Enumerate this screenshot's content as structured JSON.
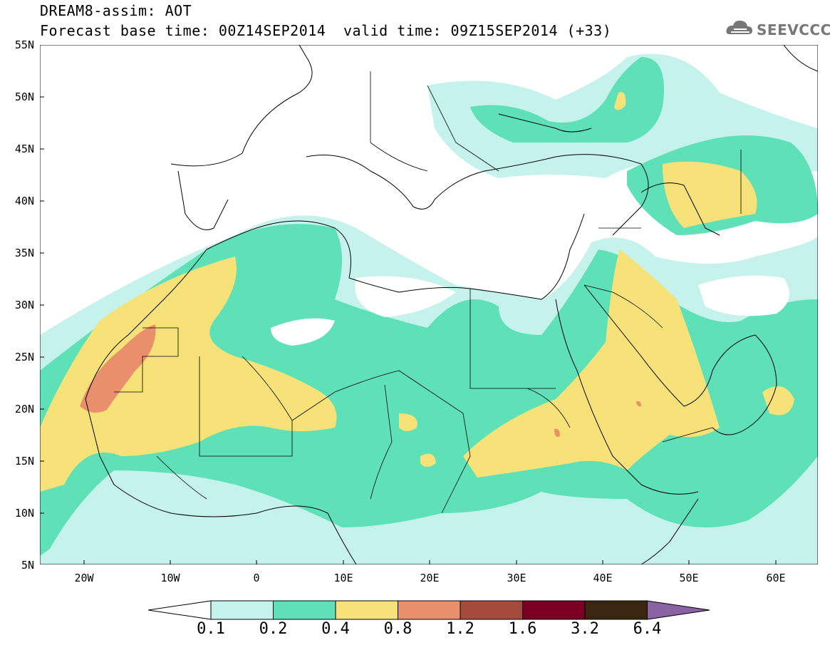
{
  "header": {
    "title": "DREAM8-assim: AOT",
    "base_time": "Forecast base time: 00Z14SEP2014",
    "valid_time": "valid time: 09Z15SEP2014 (+33)"
  },
  "logo": {
    "text": "SEEVCCC",
    "icon": "cloud-icon"
  },
  "axes": {
    "lat_ticks": [
      "55N",
      "50N",
      "45N",
      "40N",
      "35N",
      "30N",
      "25N",
      "20N",
      "15N",
      "10N",
      "5N"
    ],
    "lon_ticks": [
      "20W",
      "10W",
      "0",
      "10E",
      "20E",
      "30E",
      "40E",
      "50E",
      "60E"
    ]
  },
  "colorbar": {
    "labels": [
      "0.1",
      "0.2",
      "0.4",
      "0.8",
      "1.2",
      "1.6",
      "3.2",
      "6.4"
    ],
    "colors": [
      "#ffffff",
      "#c6f2ec",
      "#5ee1b7",
      "#f7e27a",
      "#e98f6b",
      "#a44b3e",
      "#7a0024",
      "#3b2611",
      "#8a63a5"
    ]
  },
  "palette": {
    "land": "#ffffff",
    "light": "#c6f2ec",
    "teal": "#5ee1b7",
    "yellow": "#f7e27a",
    "orange": "#e98f6b",
    "border": "#000000"
  }
}
